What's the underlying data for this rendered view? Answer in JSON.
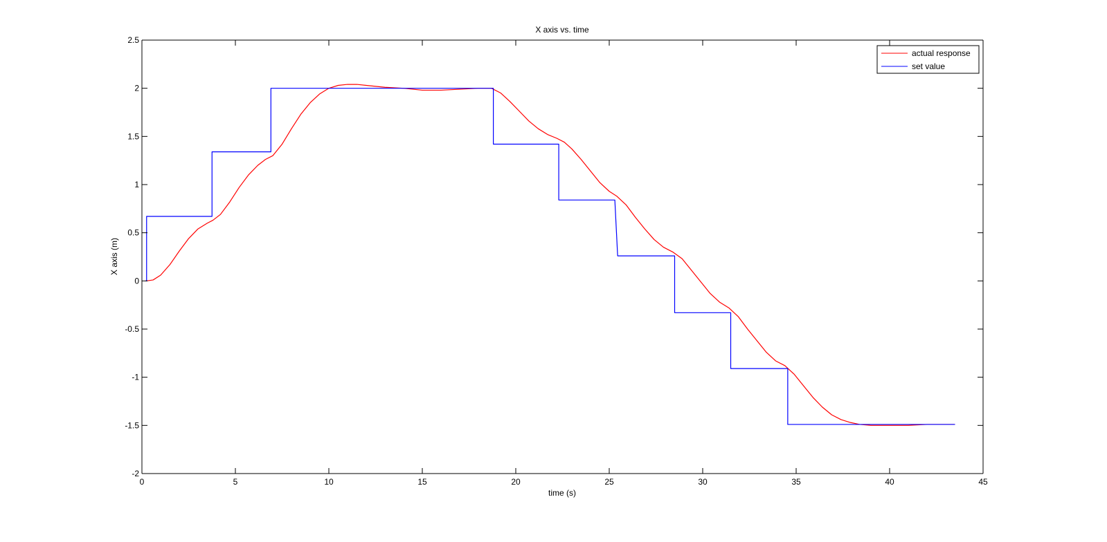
{
  "chart_data": {
    "type": "line",
    "title": "X axis vs. time",
    "xlabel": "time (s)",
    "ylabel": "X axis (m)",
    "xlim": [
      0,
      45
    ],
    "ylim": [
      -2,
      2.5
    ],
    "x_ticks": [
      0,
      5,
      10,
      15,
      20,
      25,
      30,
      35,
      40,
      45
    ],
    "y_ticks": [
      -2,
      -1.5,
      -1,
      -0.5,
      0,
      0.5,
      1,
      1.5,
      2,
      2.5
    ],
    "x_tick_labels": [
      "0",
      "5",
      "10",
      "15",
      "20",
      "25",
      "30",
      "35",
      "40",
      "45"
    ],
    "y_tick_labels": [
      "-2",
      "-1.5",
      "-1",
      "-0.5",
      "0",
      "0.5",
      "1",
      "1.5",
      "2",
      "2.5"
    ],
    "grid": false,
    "legend_position": "top-right",
    "series": [
      {
        "name": "actual response",
        "color": "#ff0000",
        "x": [
          0.25,
          0.6,
          1.0,
          1.5,
          2.0,
          2.5,
          3.0,
          3.5,
          3.8,
          4.2,
          4.7,
          5.2,
          5.7,
          6.2,
          6.6,
          7.0,
          7.5,
          8.0,
          8.5,
          9.0,
          9.5,
          10.0,
          10.5,
          11.0,
          11.5,
          12.0,
          12.5,
          13.0,
          14.0,
          15.0,
          16.0,
          17.0,
          18.0,
          18.7,
          19.2,
          19.7,
          20.2,
          20.7,
          21.2,
          21.7,
          22.2,
          22.6,
          23.0,
          23.5,
          24.0,
          24.5,
          25.0,
          25.4,
          25.9,
          26.4,
          26.9,
          27.4,
          27.9,
          28.4,
          28.9,
          29.4,
          29.9,
          30.4,
          30.9,
          31.4,
          31.9,
          32.4,
          32.9,
          33.4,
          33.9,
          34.4,
          34.9,
          35.4,
          35.9,
          36.4,
          36.9,
          37.4,
          37.9,
          38.4,
          39.0,
          40.0,
          41.0,
          42.0,
          43.0,
          43.5
        ],
        "y": [
          0.0,
          0.01,
          0.06,
          0.17,
          0.31,
          0.44,
          0.54,
          0.6,
          0.63,
          0.69,
          0.82,
          0.97,
          1.1,
          1.2,
          1.26,
          1.3,
          1.42,
          1.58,
          1.73,
          1.85,
          1.94,
          2.0,
          2.03,
          2.04,
          2.04,
          2.03,
          2.02,
          2.01,
          2.0,
          1.98,
          1.98,
          1.99,
          2.0,
          2.0,
          1.95,
          1.86,
          1.76,
          1.66,
          1.58,
          1.52,
          1.48,
          1.44,
          1.37,
          1.26,
          1.14,
          1.02,
          0.93,
          0.88,
          0.79,
          0.66,
          0.54,
          0.43,
          0.35,
          0.3,
          0.23,
          0.11,
          -0.01,
          -0.13,
          -0.22,
          -0.28,
          -0.37,
          -0.5,
          -0.62,
          -0.74,
          -0.83,
          -0.88,
          -0.97,
          -1.09,
          -1.21,
          -1.31,
          -1.39,
          -1.44,
          -1.47,
          -1.49,
          -1.5,
          -1.5,
          -1.5,
          -1.49,
          -1.49,
          -1.49
        ]
      },
      {
        "name": "set value",
        "color": "#0000ff",
        "x": [
          0.2,
          0.25,
          0.25,
          3.75,
          3.75,
          6.9,
          6.9,
          18.8,
          18.8,
          22.3,
          22.3,
          25.3,
          25.45,
          28.5,
          28.5,
          31.5,
          31.5,
          34.55,
          34.55,
          43.5
        ],
        "y": [
          0.0,
          0.0,
          0.67,
          0.67,
          1.34,
          1.34,
          2.0,
          2.0,
          1.42,
          1.42,
          0.84,
          0.84,
          0.26,
          0.26,
          -0.33,
          -0.33,
          -0.91,
          -0.91,
          -1.49,
          -1.49
        ]
      }
    ]
  }
}
